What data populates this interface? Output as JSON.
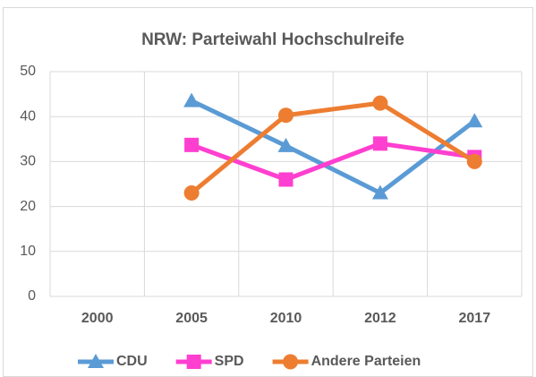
{
  "chart_data": {
    "type": "line",
    "title": "NRW: Parteiwahl Hochschulreife",
    "categories": [
      "2000",
      "2005",
      "2010",
      "2012",
      "2017"
    ],
    "series": [
      {
        "name": "CDU",
        "color": "#5b9bd5",
        "marker": "triangle",
        "values": [
          null,
          43.5,
          33.5,
          23,
          39
        ]
      },
      {
        "name": "SPD",
        "color": "#ff3fd0",
        "marker": "square",
        "values": [
          null,
          33.7,
          26,
          34,
          31
        ]
      },
      {
        "name": "Andere Parteien",
        "color": "#ed7d31",
        "marker": "circle",
        "values": [
          null,
          23,
          40.3,
          43,
          30
        ]
      }
    ],
    "ylim": [
      0,
      50
    ],
    "yticks": [
      0,
      10,
      20,
      30,
      40,
      50
    ],
    "grid": true,
    "legend": "bottom"
  }
}
